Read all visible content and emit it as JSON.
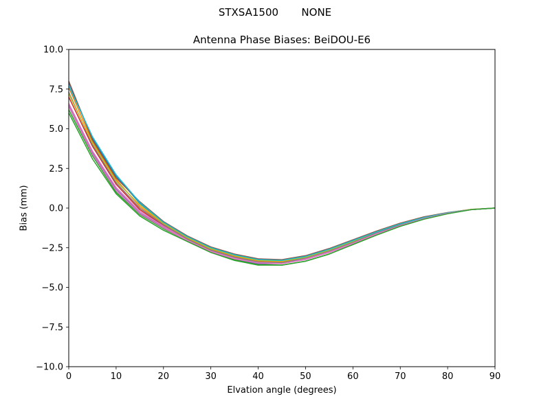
{
  "chart_data": {
    "type": "line",
    "suptitle": "STXSA1500       NONE",
    "title": "Antenna Phase Biases: BeiDOU-E6",
    "xlabel": "Elvation angle (degrees)",
    "ylabel": "Bias (mm)",
    "xlim": [
      0,
      90
    ],
    "ylim": [
      -10,
      10
    ],
    "xticks": [
      0,
      10,
      20,
      30,
      40,
      50,
      60,
      70,
      80,
      90
    ],
    "xtick_labels": [
      "0",
      "10",
      "20",
      "30",
      "40",
      "50",
      "60",
      "70",
      "80",
      "90"
    ],
    "yticks": [
      -10,
      -7.5,
      -5,
      -2.5,
      0,
      2.5,
      5,
      7.5,
      10
    ],
    "ytick_labels": [
      "−10.0",
      "−7.5",
      "−5.0",
      "−2.5",
      "0.0",
      "2.5",
      "5.0",
      "7.5",
      "10.0"
    ],
    "grid": false,
    "legend": "none",
    "x": [
      0,
      5,
      10,
      15,
      20,
      25,
      30,
      35,
      40,
      45,
      50,
      55,
      60,
      65,
      70,
      75,
      80,
      85,
      90
    ],
    "series": [
      {
        "color": "#1f77b4",
        "values": [
          7.9,
          4.4,
          2.0,
          0.3,
          -0.9,
          -1.8,
          -2.5,
          -2.95,
          -3.25,
          -3.3,
          -3.05,
          -2.6,
          -2.05,
          -1.5,
          -1.0,
          -0.6,
          -0.3,
          -0.1,
          0.0
        ]
      },
      {
        "color": "#ff7f0e",
        "values": [
          7.6,
          4.2,
          1.8,
          0.1,
          -1.0,
          -1.9,
          -2.6,
          -3.05,
          -3.35,
          -3.4,
          -3.15,
          -2.7,
          -2.15,
          -1.6,
          -1.1,
          -0.65,
          -0.32,
          -0.1,
          0.0
        ]
      },
      {
        "color": "#2ca02c",
        "values": [
          6.2,
          3.3,
          1.0,
          -0.4,
          -1.3,
          -2.05,
          -2.75,
          -3.25,
          -3.55,
          -3.6,
          -3.35,
          -2.9,
          -2.3,
          -1.7,
          -1.15,
          -0.7,
          -0.35,
          -0.1,
          0.0
        ]
      },
      {
        "color": "#d62728",
        "values": [
          7.0,
          3.9,
          1.5,
          -0.1,
          -1.1,
          -2.0,
          -2.7,
          -3.15,
          -3.45,
          -3.5,
          -3.2,
          -2.8,
          -2.2,
          -1.6,
          -1.1,
          -0.66,
          -0.32,
          -0.1,
          0.0
        ]
      },
      {
        "color": "#9467bd",
        "values": [
          6.5,
          3.5,
          1.2,
          -0.3,
          -1.2,
          -2.05,
          -2.75,
          -3.2,
          -3.5,
          -3.5,
          -3.25,
          -2.8,
          -2.25,
          -1.65,
          -1.1,
          -0.68,
          -0.34,
          -0.1,
          0.0
        ]
      },
      {
        "color": "#8c564b",
        "values": [
          8.0,
          4.3,
          1.9,
          0.4,
          -0.85,
          -1.75,
          -2.45,
          -2.9,
          -3.2,
          -3.25,
          -3.0,
          -2.55,
          -2.0,
          -1.45,
          -0.95,
          -0.55,
          -0.28,
          -0.08,
          0.0
        ]
      },
      {
        "color": "#e377c2",
        "values": [
          6.6,
          3.6,
          1.3,
          -0.2,
          -1.15,
          -2.0,
          -2.7,
          -3.15,
          -3.4,
          -3.45,
          -3.2,
          -2.75,
          -2.2,
          -1.6,
          -1.05,
          -0.64,
          -0.31,
          -0.09,
          0.0
        ]
      },
      {
        "color": "#7f7f7f",
        "values": [
          7.3,
          4.0,
          1.6,
          0.0,
          -1.05,
          -1.95,
          -2.65,
          -3.1,
          -3.4,
          -3.45,
          -3.15,
          -2.7,
          -2.15,
          -1.55,
          -1.05,
          -0.63,
          -0.31,
          -0.09,
          0.0
        ]
      },
      {
        "color": "#bcbd22",
        "values": [
          7.2,
          4.1,
          1.7,
          0.2,
          -0.95,
          -1.85,
          -2.55,
          -3.0,
          -3.3,
          -3.35,
          -3.1,
          -2.65,
          -2.1,
          -1.5,
          -1.0,
          -0.6,
          -0.3,
          -0.08,
          0.0
        ]
      },
      {
        "color": "#17becf",
        "values": [
          7.7,
          4.5,
          2.1,
          0.35,
          -0.9,
          -1.8,
          -2.5,
          -2.95,
          -3.25,
          -3.3,
          -3.05,
          -2.6,
          -2.05,
          -1.5,
          -1.0,
          -0.6,
          -0.3,
          -0.1,
          0.0
        ]
      },
      {
        "color": "#e377c2",
        "values": [
          6.4,
          3.4,
          1.1,
          -0.35,
          -1.25,
          -2.05,
          -2.75,
          -3.2,
          -3.45,
          -3.5,
          -3.25,
          -2.8,
          -2.25,
          -1.65,
          -1.1,
          -0.66,
          -0.33,
          -0.1,
          0.0
        ]
      },
      {
        "color": "#2ca02c",
        "values": [
          6.0,
          3.1,
          0.9,
          -0.5,
          -1.4,
          -2.1,
          -2.8,
          -3.3,
          -3.6,
          -3.6,
          -3.35,
          -2.9,
          -2.3,
          -1.7,
          -1.15,
          -0.7,
          -0.36,
          -0.1,
          0.0
        ]
      }
    ]
  }
}
